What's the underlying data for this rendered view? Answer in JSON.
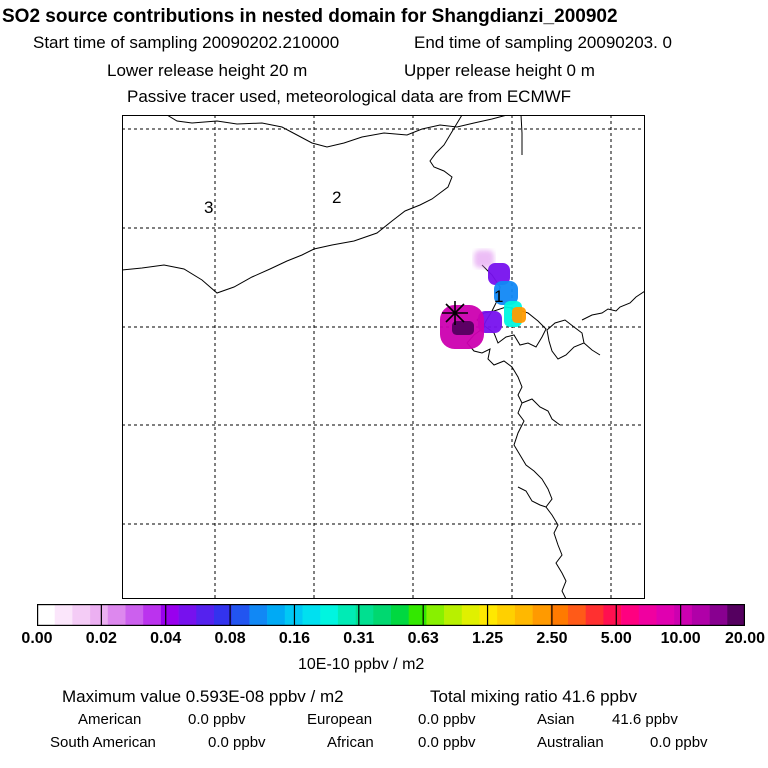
{
  "chart_data": {
    "type": "heatmap",
    "title": "SO2 source contributions in nested domain for Shangdianzi_200902",
    "subtitle": {
      "start": "Start time of sampling 20090202.210000",
      "end": "End time of sampling 20090203.     0",
      "lower": "Lower release height   20 m",
      "upper": "Upper release height    0 m",
      "note": "Passive tracer used, meteorological data are from ECMWF"
    },
    "region_labels": [
      "3",
      "2",
      "1"
    ],
    "colorbar": {
      "ticks": [
        "0.00",
        "0.02",
        "0.04",
        "0.08",
        "0.16",
        "0.31",
        "0.63",
        "1.25",
        "2.50",
        "5.00",
        "10.00",
        "20.00"
      ],
      "colors": [
        "#ffffff",
        "#fbe6fb",
        "#f4ccf6",
        "#ecb0f2",
        "#dd88ee",
        "#cc60ee",
        "#bb33ee",
        "#9900ee",
        "#7711ee",
        "#5522ee",
        "#3333ee",
        "#2255f0",
        "#1188f5",
        "#00aaf5",
        "#00c8f5",
        "#00e0f0",
        "#00f5e0",
        "#00ebb5",
        "#00e090",
        "#00d870",
        "#00d840",
        "#33e800",
        "#88f000",
        "#b8f000",
        "#e0f000",
        "#ffe800",
        "#ffd000",
        "#ffb800",
        "#ff9a00",
        "#ff7a00",
        "#ff5a18",
        "#ff3030",
        "#ff1050",
        "#ff0080",
        "#f000a0",
        "#e000b0",
        "#cc00b0",
        "#b000a8",
        "#880090",
        "#550060"
      ],
      "unit_label": "10E-10 ppbv / m2"
    },
    "plume": [
      {
        "lon_idx": 0,
        "lat_idx": 0,
        "value": 0.02
      },
      {
        "lon_idx": 1,
        "lat_idx": 0,
        "value": 0.04
      },
      {
        "lon_idx": 2,
        "lat_idx": 1,
        "value": 0.08
      },
      {
        "lon_idx": 2,
        "lat_idx": 2,
        "value": 0.16
      },
      {
        "lon_idx": 3,
        "lat_idx": 2,
        "value": 1.25
      },
      {
        "lon_idx": 1,
        "lat_idx": 3,
        "value": 0.04
      },
      {
        "lon_idx": 0,
        "lat_idx": 3,
        "value": 5.0
      },
      {
        "lon_idx": 0,
        "lat_idx": 4,
        "value": 20.0
      }
    ],
    "max_value": 20.0
  },
  "stats": {
    "max_label": "Maximum value  0.593E-08 ppbv / m2",
    "total_label": "Total mixing ratio      41.6 ppbv",
    "regions": [
      {
        "name": "American",
        "value": "0.0 ppbv"
      },
      {
        "name": "European",
        "value": "0.0 ppbv"
      },
      {
        "name": "Asian",
        "value": "41.6 ppbv"
      },
      {
        "name": "South American",
        "value": "0.0 ppbv"
      },
      {
        "name": "African",
        "value": "0.0 ppbv"
      },
      {
        "name": "Australian",
        "value": "0.0 ppbv"
      }
    ]
  }
}
